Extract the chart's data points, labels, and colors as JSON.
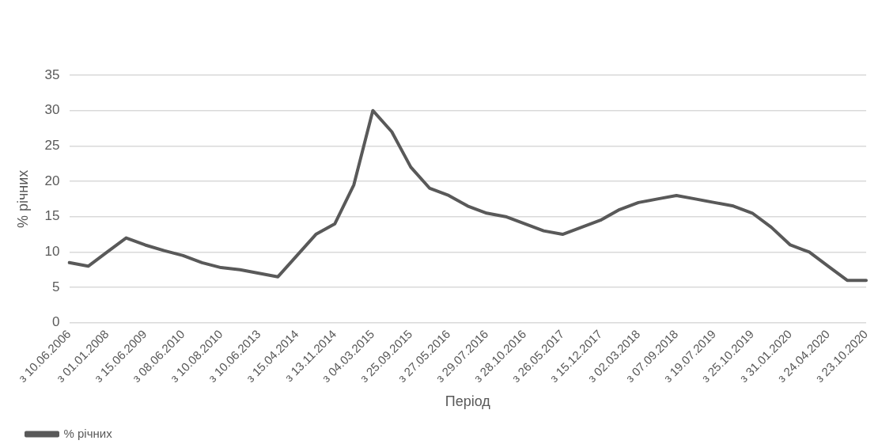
{
  "chart_data": {
    "type": "line",
    "xlabel": "Період",
    "ylabel": "% річних",
    "categories": [
      "з 10.06.2006",
      null,
      "з 01.01.2008",
      null,
      "з 15.06.2009",
      null,
      "з 08.06.2010",
      null,
      "з 10.08.2010",
      null,
      "з 10.06.2013",
      null,
      "з 15.04.2014",
      null,
      "з 13.11.2014",
      null,
      "з 04.03.2015",
      null,
      "з 25.09.2015",
      null,
      "з 27.05.2016",
      null,
      "з 29.07.2016",
      null,
      "з 28.10.2016",
      null,
      "з 26.05.2017",
      null,
      "з 15.12.2017",
      null,
      "з 02.03.2018",
      null,
      "з 07.09.2018",
      null,
      "з 19.07.2019",
      null,
      "з 25.10.2019",
      null,
      "з 31.01.2020",
      null,
      "з 24.04.2020",
      null,
      "з 23.10.2020"
    ],
    "series": [
      {
        "name": "% річних",
        "color": "#595959",
        "values": [
          8.5,
          8,
          10,
          12,
          11,
          10.2,
          9.5,
          8.5,
          7.8,
          7.5,
          7,
          6.5,
          9.5,
          12.5,
          14,
          19.5,
          30,
          27,
          22,
          19,
          18,
          16.5,
          15.5,
          15,
          14,
          13,
          12.5,
          13.5,
          14.5,
          16,
          17,
          17.5,
          18,
          17.5,
          17,
          16.5,
          15.5,
          13.5,
          11,
          10,
          8,
          6,
          6
        ]
      }
    ],
    "ylim": [
      0,
      35
    ],
    "yticks": [
      0,
      5,
      10,
      15,
      20,
      25,
      30,
      35
    ],
    "grid": "y",
    "legend": "bottom left",
    "marker": "none",
    "line_style": "solid"
  }
}
